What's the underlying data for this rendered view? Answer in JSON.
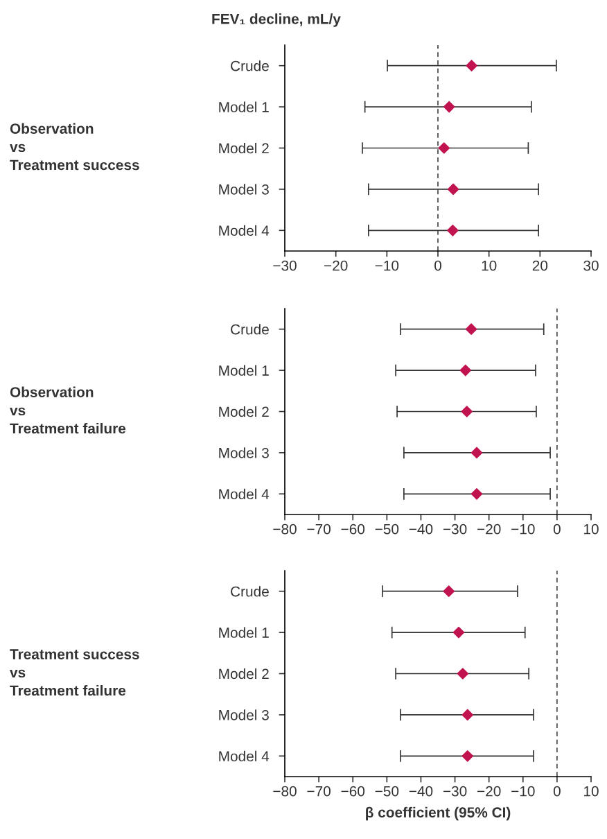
{
  "chart_data": [
    {
      "type": "scatter",
      "title": "FEV₁ decline, mL/y",
      "ylabel": "Observation\nvs\nTreatment success",
      "orientation": "horizontal",
      "categories": [
        "Crude",
        "Model 1",
        "Model 2",
        "Model 3",
        "Model 4"
      ],
      "series": [
        {
          "color": "#c0134f",
          "values": [
            6.6,
            2.2,
            1.2,
            3.0,
            2.9
          ],
          "errors": [
            [
              -9.9,
              23.2
            ],
            [
              -14.3,
              18.3
            ],
            [
              -14.8,
              17.7
            ],
            [
              -13.6,
              19.7
            ],
            [
              -13.6,
              19.7
            ]
          ]
        }
      ],
      "xlim": [
        -30,
        30
      ],
      "xticks": [
        -30,
        -20,
        -10,
        0,
        10,
        20,
        30
      ],
      "ref_lines": [
        {
          "axis": "x",
          "value": 0,
          "line_style": "dashed"
        }
      ],
      "marker": "diamond",
      "grid": false,
      "legend": false
    },
    {
      "type": "scatter",
      "ylabel": "Observation\nvs\nTreatment failure",
      "orientation": "horizontal",
      "categories": [
        "Crude",
        "Model 1",
        "Model 2",
        "Model 3",
        "Model 4"
      ],
      "series": [
        {
          "color": "#c0134f",
          "values": [
            -25.2,
            -26.9,
            -26.5,
            -23.6,
            -23.6
          ],
          "errors": [
            [
              -46.0,
              -3.9
            ],
            [
              -47.4,
              -6.3
            ],
            [
              -47.0,
              -6.1
            ],
            [
              -45.0,
              -2.0
            ],
            [
              -45.0,
              -2.0
            ]
          ]
        }
      ],
      "xlim": [
        -80,
        10
      ],
      "xticks": [
        -80,
        -70,
        -60,
        -50,
        -40,
        -30,
        -20,
        -10,
        0,
        10
      ],
      "ref_lines": [
        {
          "axis": "x",
          "value": 0,
          "line_style": "dashed"
        }
      ],
      "marker": "diamond",
      "grid": false,
      "legend": false
    },
    {
      "type": "scatter",
      "ylabel": "Treatment success\nvs\nTreatment failure",
      "xlabel": "β coefficient (95% CI)",
      "orientation": "horizontal",
      "categories": [
        "Crude",
        "Model 1",
        "Model 2",
        "Model 3",
        "Model 4"
      ],
      "series": [
        {
          "color": "#c0134f",
          "values": [
            -31.8,
            -28.9,
            -27.7,
            -26.3,
            -26.3
          ],
          "errors": [
            [
              -51.3,
              -11.6
            ],
            [
              -48.5,
              -9.4
            ],
            [
              -47.4,
              -8.3
            ],
            [
              -46.0,
              -6.9
            ],
            [
              -46.0,
              -6.9
            ]
          ]
        }
      ],
      "xlim": [
        -80,
        10
      ],
      "xticks": [
        -80,
        -70,
        -60,
        -50,
        -40,
        -30,
        -20,
        -10,
        0,
        10
      ],
      "ref_lines": [
        {
          "axis": "x",
          "value": 0,
          "line_style": "dashed"
        }
      ],
      "marker": "diamond",
      "grid": false,
      "legend": false
    }
  ]
}
